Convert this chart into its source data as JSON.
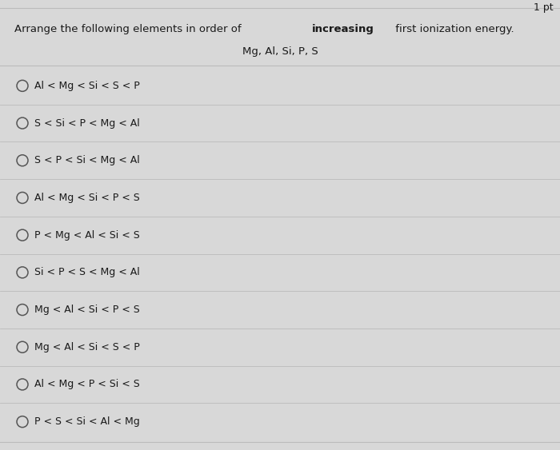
{
  "title_normal": "Arrange the following elements in order of ",
  "title_bold": "increasing",
  "title_end": " first ionization energy.",
  "subtitle": "Mg, Al, Si, P, S",
  "options": [
    "Al < Mg < Si < S < P",
    "S < Si < P < Mg < Al",
    "S < P < Si < Mg < Al",
    "Al < Mg < Si < P < S",
    "P < Mg < Al < Si < S",
    "Si < P < S < Mg < Al",
    "Mg < Al < Si < P < S",
    "Mg < Al < Si < S < P",
    "Al < Mg < P < Si < S",
    "P < S < Si < Al < Mg"
  ],
  "score_text": "1 pt",
  "bg_color": "#d8d8d8",
  "text_color": "#1a1a1a",
  "line_color": "#bbbbbb",
  "circle_color": "#555555",
  "font_size_title": 9.5,
  "font_size_option": 9.0,
  "font_size_score": 9.0
}
